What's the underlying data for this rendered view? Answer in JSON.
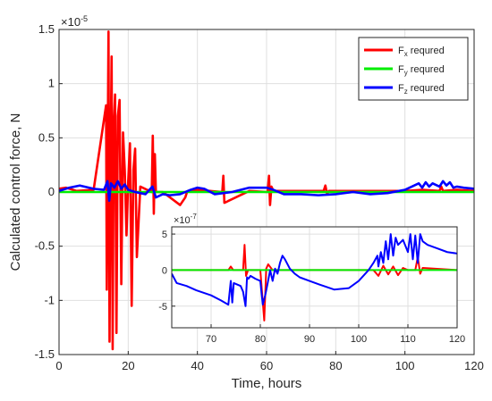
{
  "chart_data": [
    {
      "type": "line",
      "xlabel": "Time, hours",
      "ylabel": "Calculated control force, N",
      "y_exponent_label": "×10",
      "y_exponent_power": "-5",
      "xlim": [
        0,
        120
      ],
      "ylim": [
        -1.5,
        1.5
      ],
      "xticks": [
        "0",
        "20",
        "40",
        "60",
        "80",
        "100",
        "120"
      ],
      "yticks": [
        "-1.5",
        "-1",
        "-0.5",
        "0",
        "0.5",
        "1",
        "1.5"
      ],
      "grid": true,
      "legend_position": "top-right",
      "series": [
        {
          "name": "F",
          "subscript": "x",
          "suffix": " requred",
          "color": "#ff0000",
          "x": [
            0,
            2,
            5,
            10,
            13.6,
            13.8,
            14.0,
            14.3,
            14.6,
            14.9,
            15.2,
            15.5,
            15.8,
            16.2,
            16.6,
            17.0,
            17.5,
            18.0,
            18.5,
            19.0,
            19.5,
            20.0,
            20.5,
            21.0,
            21.5,
            22.0,
            22.5,
            23.5,
            26.8,
            27.1,
            27.4,
            27.7,
            28.0,
            30,
            35,
            36.5,
            37,
            40,
            47.2,
            47.5,
            47.8,
            55,
            60.3,
            60.7,
            61.0,
            61.4,
            62,
            70,
            76.5,
            77,
            77.5,
            78,
            80,
            85,
            100,
            105,
            110,
            110.5,
            111,
            115,
            120
          ],
          "y": [
            0.03,
            0.04,
            0.01,
            0.02,
            0.8,
            -0.9,
            0.05,
            1.48,
            -1.38,
            0.3,
            1.25,
            -1.45,
            0.6,
            0.9,
            -1.3,
            0.7,
            0.85,
            -0.85,
            0.55,
            0.2,
            -0.4,
            0.1,
            0.45,
            -1.05,
            0.2,
            0.4,
            -0.6,
            0.05,
            0.0,
            0.52,
            -0.2,
            0.35,
            0.0,
            0.0,
            -0.12,
            -0.05,
            0.0,
            0.02,
            0.0,
            0.15,
            -0.1,
            0.01,
            0.0,
            0.15,
            -0.12,
            0.05,
            0.01,
            0.01,
            0.01,
            0.06,
            -0.02,
            0.01,
            0.01,
            0.01,
            0.01,
            0.02,
            0.01,
            0.05,
            0.01,
            0.02,
            0.01
          ]
        },
        {
          "name": "F",
          "subscript": "y",
          "suffix": " requred",
          "color": "#00ee00",
          "x": [
            0,
            120
          ],
          "y": [
            0.0,
            0.0
          ]
        },
        {
          "name": "F",
          "subscript": "z",
          "suffix": " requred",
          "color": "#0000ff",
          "x": [
            0,
            3,
            6,
            10,
            13,
            14,
            14.5,
            15,
            16,
            17,
            18,
            19,
            20,
            22,
            25,
            27,
            28,
            30,
            32,
            35,
            38,
            40,
            42,
            45,
            50,
            55,
            60,
            62,
            65,
            70,
            75,
            80,
            85,
            90,
            95,
            100,
            102,
            104,
            105,
            106,
            107,
            108,
            110,
            111,
            112,
            113,
            114,
            115,
            117,
            120
          ],
          "y": [
            0.01,
            0.04,
            0.06,
            0.03,
            0.02,
            0.1,
            -0.08,
            0.08,
            0.04,
            0.1,
            0.03,
            0.07,
            0.02,
            0.0,
            -0.02,
            0.05,
            -0.05,
            -0.02,
            -0.03,
            -0.02,
            0.02,
            0.04,
            0.03,
            -0.02,
            0.0,
            0.04,
            0.04,
            0.02,
            -0.02,
            -0.02,
            -0.03,
            -0.02,
            0.0,
            -0.02,
            -0.01,
            0.02,
            0.05,
            0.08,
            0.04,
            0.09,
            0.05,
            0.08,
            0.05,
            0.1,
            0.06,
            0.09,
            0.04,
            0.05,
            0.04,
            0.03
          ]
        }
      ]
    },
    {
      "type": "line",
      "inset": true,
      "y_exponent_label": "×10",
      "y_exponent_power": "-7",
      "xlim": [
        62,
        120
      ],
      "ylim": [
        -8,
        6
      ],
      "xticks": [
        "70",
        "80",
        "90",
        "100",
        "110",
        "120"
      ],
      "yticks": [
        "-5",
        "0",
        "5"
      ],
      "grid": true,
      "series": [
        {
          "name": "F",
          "subscript": "x",
          "suffix": " requred",
          "color": "#ff0000",
          "x": [
            62,
            70,
            73.5,
            74,
            74.5,
            76.5,
            76.8,
            77.1,
            77.5,
            80,
            80.8,
            81.2,
            81.6,
            82.5,
            85,
            95,
            103,
            104,
            105,
            106,
            107,
            108,
            109,
            110,
            111.5,
            112,
            112.5,
            113,
            120
          ],
          "y": [
            0.0,
            0.0,
            0.0,
            0.5,
            0.0,
            0.0,
            3.5,
            -0.8,
            0.0,
            0.0,
            -7.0,
            0.2,
            0.8,
            0.0,
            0.0,
            0.0,
            0.0,
            -0.8,
            0.6,
            -0.6,
            0.5,
            -0.7,
            0.3,
            0.0,
            0.0,
            1.8,
            -0.5,
            0.3,
            0.0
          ]
        },
        {
          "name": "F",
          "subscript": "y",
          "suffix": " requred",
          "color": "#00ee00",
          "x": [
            62,
            120
          ],
          "y": [
            0.0,
            0.0
          ]
        },
        {
          "name": "F",
          "subscript": "z",
          "suffix": " requred",
          "color": "#0000ff",
          "x": [
            62,
            63,
            65,
            67,
            70,
            72,
            73.5,
            74,
            74.3,
            74.6,
            76,
            76.5,
            77,
            77.3,
            77.6,
            78,
            79,
            80,
            80.5,
            81,
            81.5,
            82,
            82.5,
            83,
            83.5,
            84,
            84.5,
            85,
            86,
            87,
            88,
            90,
            92,
            95,
            98,
            100,
            102,
            103,
            103.8,
            104,
            104.5,
            105,
            105.5,
            106,
            106.5,
            107,
            107.5,
            108,
            109,
            110,
            110.5,
            111,
            111.5,
            112,
            112.5,
            113,
            114,
            116,
            118,
            120
          ],
          "y": [
            -0.5,
            -1.8,
            -2.2,
            -2.8,
            -3.5,
            -4.2,
            -4.8,
            -1.5,
            -4.5,
            -1.8,
            -2.2,
            -3.0,
            -5.0,
            -1.0,
            -1.2,
            -0.8,
            -1.2,
            -1.5,
            -4.8,
            -3.5,
            -1.8,
            0.0,
            -1.5,
            0.2,
            -0.5,
            1.0,
            2.0,
            1.5,
            0.2,
            -0.5,
            -1.0,
            -1.5,
            -2.0,
            -2.7,
            -2.5,
            -1.5,
            0.0,
            1.0,
            2.0,
            0.5,
            2.5,
            1.0,
            4.0,
            1.5,
            5.0,
            2.0,
            4.5,
            3.5,
            4.2,
            2.5,
            5.0,
            1.5,
            4.8,
            1.0,
            5.0,
            4.0,
            3.5,
            3.0,
            2.5,
            2.3
          ]
        }
      ]
    }
  ]
}
